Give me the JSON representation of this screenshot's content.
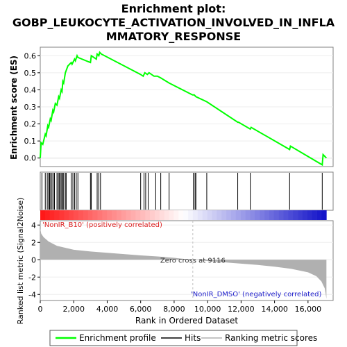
{
  "title_line1": "Enrichment plot:",
  "title_line2": "GOBP_LEUKOCYTE_ACTIVATION_INVOLVED_IN_INFLA",
  "title_line3": "MMATORY_RESPONSE",
  "colors": {
    "enrichment": "#00ff00",
    "hits": "#000000",
    "ranking": "#b0b0b0",
    "pos_label": "#dd2222",
    "neg_label": "#2222cc",
    "zero_line": "#c0c0c0"
  },
  "legend": {
    "enrichment": "Enrichment profile",
    "hits": "Hits",
    "ranking": "Ranking metric scores"
  },
  "chart_data": [
    {
      "type": "line",
      "name": "enrichment-profile",
      "ylabel": "Enrichment score (ES)",
      "ylim": [
        -0.05,
        0.65
      ],
      "xlim": [
        0,
        17500
      ],
      "yticks": [
        "0.0",
        "0.1",
        "0.2",
        "0.3",
        "0.4",
        "0.5",
        "0.6"
      ],
      "x": [
        0,
        50,
        150,
        300,
        350,
        450,
        500,
        600,
        650,
        750,
        800,
        900,
        1000,
        1100,
        1150,
        1250,
        1300,
        1350,
        1400,
        1500,
        1650,
        1850,
        1900,
        2050,
        2100,
        2200,
        2250,
        3000,
        3050,
        3350,
        3400,
        3500,
        3550,
        3650,
        6000,
        6150,
        6250,
        6400,
        6500,
        6800,
        7000,
        7200,
        7700,
        9100,
        9200,
        9300,
        9950,
        11800,
        11850,
        12550,
        12600,
        14900,
        14950,
        16850,
        16900,
        17100
      ],
      "y": [
        0.0,
        0.09,
        0.08,
        0.14,
        0.13,
        0.19,
        0.18,
        0.23,
        0.22,
        0.28,
        0.27,
        0.32,
        0.31,
        0.36,
        0.35,
        0.4,
        0.39,
        0.45,
        0.44,
        0.5,
        0.54,
        0.56,
        0.55,
        0.58,
        0.57,
        0.6,
        0.59,
        0.56,
        0.6,
        0.58,
        0.61,
        0.6,
        0.62,
        0.61,
        0.49,
        0.48,
        0.5,
        0.49,
        0.5,
        0.48,
        0.48,
        0.47,
        0.44,
        0.37,
        0.37,
        0.36,
        0.33,
        0.21,
        0.21,
        0.17,
        0.18,
        0.05,
        0.07,
        -0.04,
        0.02,
        0.0
      ]
    },
    {
      "type": "scatter",
      "name": "hits",
      "x": [
        100,
        300,
        420,
        500,
        560,
        620,
        700,
        780,
        850,
        1000,
        1080,
        1150,
        1200,
        1280,
        1340,
        1400,
        1500,
        1550,
        1850,
        1950,
        2050,
        2150,
        2250,
        3000,
        3050,
        3400,
        3500,
        3600,
        6000,
        6200,
        6300,
        6450,
        6900,
        7200,
        7700,
        9150,
        9250,
        9300,
        9950,
        11800,
        12550,
        14900,
        16850
      ]
    },
    {
      "type": "area",
      "name": "ranked-list-metric",
      "ylabel": "Ranked list metric (Signal2Noise)",
      "xlabel": "Rank in Ordered Dataset",
      "ylim": [
        -4.7,
        4.5
      ],
      "xlim": [
        0,
        17500
      ],
      "yticks": [
        "4",
        "2",
        "0",
        "-2",
        "-4"
      ],
      "xticks": [
        "0",
        "2,000",
        "4,000",
        "6,000",
        "8,000",
        "10,000",
        "12,000",
        "14,000",
        "16,000"
      ],
      "x": [
        0,
        60,
        200,
        500,
        1000,
        2000,
        3000,
        4000,
        5000,
        6000,
        7000,
        8000,
        9116,
        10000,
        11000,
        12000,
        13000,
        14000,
        15000,
        16000,
        16500,
        16800,
        17000,
        17100
      ],
      "y": [
        3.6,
        3.0,
        2.6,
        2.1,
        1.6,
        1.15,
        0.95,
        0.8,
        0.65,
        0.5,
        0.38,
        0.22,
        0.0,
        -0.15,
        -0.3,
        -0.45,
        -0.6,
        -0.8,
        -1.05,
        -1.45,
        -1.9,
        -2.5,
        -3.3,
        -4.5
      ],
      "zero_cross_label": "Zero cross at 9116",
      "zero_cross_x": 9116,
      "pos_label": "'NonIR_B10' (positively correlated)",
      "neg_label": "'NonIR_DMSO' (negatively correlated)"
    }
  ]
}
